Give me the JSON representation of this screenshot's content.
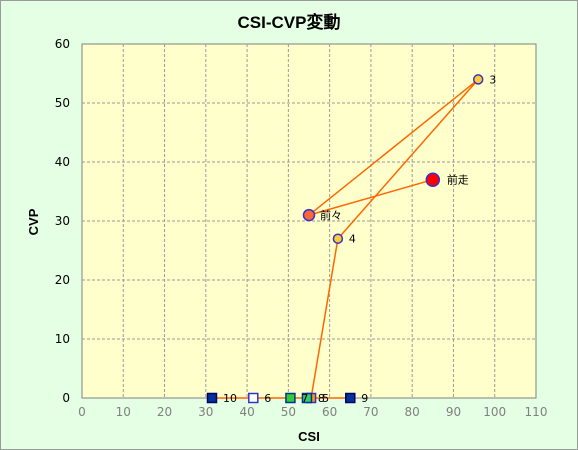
{
  "chart_data": {
    "type": "scatter",
    "title": "CSI-CVP変動",
    "xlabel": "CSI",
    "ylabel": "CVP",
    "xlim": [
      0,
      110
    ],
    "ylim": [
      0,
      60
    ],
    "x_ticks": [
      0,
      10,
      20,
      30,
      40,
      50,
      60,
      70,
      80,
      90,
      100,
      110
    ],
    "y_ticks": [
      0,
      10,
      20,
      30,
      40,
      50,
      60
    ],
    "grid": true,
    "plot_background": "#ffffcc",
    "frame_background": "#e5ffe5",
    "line_color": "#ff6600",
    "path": [
      {
        "x": 85,
        "y": 37
      },
      {
        "x": 55,
        "y": 31
      },
      {
        "x": 96,
        "y": 54
      },
      {
        "x": 62,
        "y": 27
      },
      {
        "x": 55.5,
        "y": 0
      },
      {
        "x": 65,
        "y": 0
      },
      {
        "x": 31.5,
        "y": 0
      }
    ],
    "points": [
      {
        "label": "前走",
        "x": 85,
        "y": 37,
        "marker": "circle",
        "fill": "#ff0000",
        "stroke": "#3333cc",
        "size": "large"
      },
      {
        "label": "前々",
        "x": 55,
        "y": 31,
        "marker": "circle",
        "fill": "#ff6633",
        "stroke": "#3333cc",
        "size": "medium"
      },
      {
        "label": "3",
        "x": 96,
        "y": 54,
        "marker": "circle",
        "fill": "#ffcc33",
        "stroke": "#3333cc",
        "size": "small"
      },
      {
        "label": "4",
        "x": 62,
        "y": 27,
        "marker": "circle",
        "fill": "#ffcc33",
        "stroke": "#3333cc",
        "size": "small"
      },
      {
        "label": "5",
        "x": 55.5,
        "y": 0,
        "marker": "square",
        "fill": "#ff9900",
        "stroke": "#3333cc",
        "size": "small"
      },
      {
        "label": "6",
        "x": 41.5,
        "y": 0,
        "marker": "square",
        "fill": "#ffffff",
        "stroke": "#3333cc",
        "size": "small"
      },
      {
        "label": "7",
        "x": 50.5,
        "y": 0,
        "marker": "square",
        "fill": "#33cc33",
        "stroke": "#003399",
        "size": "small"
      },
      {
        "label": "8",
        "x": 54.5,
        "y": 0,
        "marker": "square",
        "fill": "#33cc66",
        "stroke": "#003399",
        "size": "small"
      },
      {
        "label": "9",
        "x": 65,
        "y": 0,
        "marker": "square",
        "fill": "#003399",
        "stroke": "#000066",
        "size": "small"
      },
      {
        "label": "10",
        "x": 31.5,
        "y": 0,
        "marker": "square",
        "fill": "#003399",
        "stroke": "#000066",
        "size": "small"
      }
    ]
  }
}
